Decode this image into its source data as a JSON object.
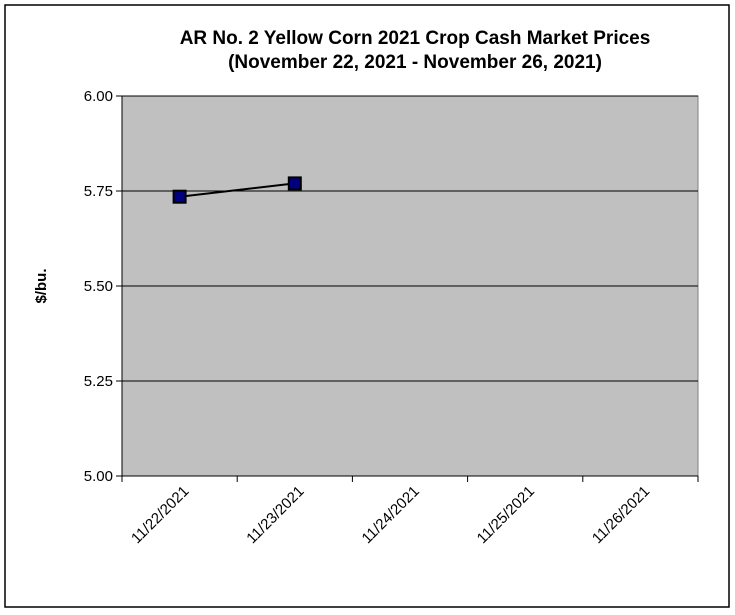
{
  "chart_data": {
    "type": "line",
    "title_line1": "AR No. 2 Yellow Corn 2021 Crop Cash Market Prices",
    "title_line2": "(November 22, 2021 - November 26, 2021)",
    "xlabel": "",
    "ylabel": "$/bu.",
    "categories": [
      "11/22/2021",
      "11/23/2021",
      "11/24/2021",
      "11/25/2021",
      "11/26/2021"
    ],
    "series": [
      {
        "values": [
          5.735,
          5.77,
          null,
          null,
          null
        ],
        "color": "#000000",
        "marker_color": "#00007f"
      }
    ],
    "ylim": [
      5.0,
      6.0
    ],
    "yticks": [
      5.0,
      5.25,
      5.5,
      5.75,
      6.0
    ],
    "ytick_labels": [
      "5.00",
      "5.25",
      "5.50",
      "5.75",
      "6.00"
    ],
    "grid": true,
    "plot_background": "#c0c0c0"
  }
}
